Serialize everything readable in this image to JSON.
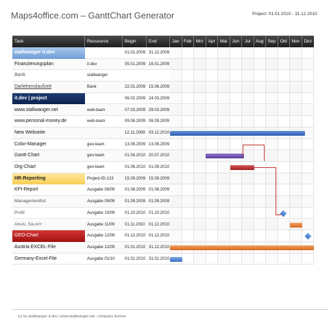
{
  "app": {
    "title": "Maps4office.com – GanttChart Generator",
    "project_range": "Project: 01.01.2010 - 31.12.2010"
  },
  "columns": {
    "task": "Task",
    "resource": "Ressource",
    "begin": "Begin",
    "end": "End",
    "months": [
      "Jan",
      "Feb",
      "Mrz",
      "Apr",
      "Mai",
      "Jun",
      "Jul",
      "Aug",
      "Sep",
      "Okt",
      "Nov",
      "Dez"
    ]
  },
  "rows": [
    {
      "task": "stallwanger it.dev",
      "resource": "",
      "begin": "01.01.2009",
      "end": "31.12.2009"
    },
    {
      "task": "Finanzierungsplan",
      "resource": "it.dev",
      "begin": "05.01.2009",
      "end": "16.01.2009"
    },
    {
      "task": "Bank",
      "resource": "stallwanger",
      "begin": "",
      "end": ""
    },
    {
      "task": "Darlehenslaufzeit",
      "resource": "Bank",
      "begin": "22.01.2009",
      "end": "15.06.2009"
    },
    {
      "task": "it.dev | project",
      "resource": "",
      "begin": "06.02.2009",
      "end": "24.03.2009"
    },
    {
      "task": "www.stallwanger.net",
      "resource": "web-team",
      "begin": "07.03.2009",
      "end": "29.03.2009"
    },
    {
      "task": "www.personal-money.de",
      "resource": "web-team",
      "begin": "09.06.2009",
      "end": "08.09.2009"
    },
    {
      "task": "New Webseite",
      "resource": "",
      "begin": "12.11.2009",
      "end": "03.12.2010"
    },
    {
      "task": "Color-Manager",
      "resource": "geo-team",
      "begin": "13.06.2009",
      "end": "13.06.2009"
    },
    {
      "task": "Gantt-Chart",
      "resource": "geo-team",
      "begin": "01.04.2010",
      "end": "20.07.2010"
    },
    {
      "task": "Org-Chart",
      "resource": "geo-team",
      "begin": "01.06.2010",
      "end": "01.09.2010"
    },
    {
      "task": "HR-Reporting",
      "resource": "Project-ID-123",
      "begin": "15.09.2009",
      "end": "15.09.2009"
    },
    {
      "task": "KPI-Report",
      "resource": "Ausgabe 08/09",
      "begin": "01.08.2009",
      "end": "01.08.2009"
    },
    {
      "task": "Managementlist",
      "resource": "Ausgabe 09/09",
      "begin": "01.09.2009",
      "end": "01.09.2009"
    },
    {
      "task": "Profil",
      "resource": "Ausgabe 10/09",
      "begin": "01.10.2010",
      "end": "01.10.2010"
    },
    {
      "task": "Anual Salary",
      "resource": "Ausgabe 11/09",
      "begin": "01.11.2010",
      "end": "01.12.2010"
    },
    {
      "task": "GEO-Chart",
      "resource": "Ausgabe 12/09",
      "begin": "01.12.2010",
      "end": "01.12.2010"
    },
    {
      "task": "Austria EXCEL-File",
      "resource": "Ausgabe 12/09",
      "begin": "01.01.2010",
      "end": "31.12.2010"
    },
    {
      "task": "Germany-Excel-File",
      "resource": "Ausgabe 01/10",
      "begin": "01.01.2010",
      "end": "31.01.2010"
    }
  ],
  "colors": {
    "header_dark": "#2a2a2a",
    "highlight_blue": "#8fb4e3",
    "highlight_navy": "#15305f",
    "highlight_yellow": "#fbd86a",
    "highlight_red": "#bb2222",
    "bar_blue": "#3d6cc0",
    "bar_purple": "#6a52b0",
    "bar_red": "#b83030",
    "bar_orange": "#e07a30"
  },
  "footer": {
    "text": "(c) by stallwanger it.dev | www.stallwanger.net ; company license"
  }
}
